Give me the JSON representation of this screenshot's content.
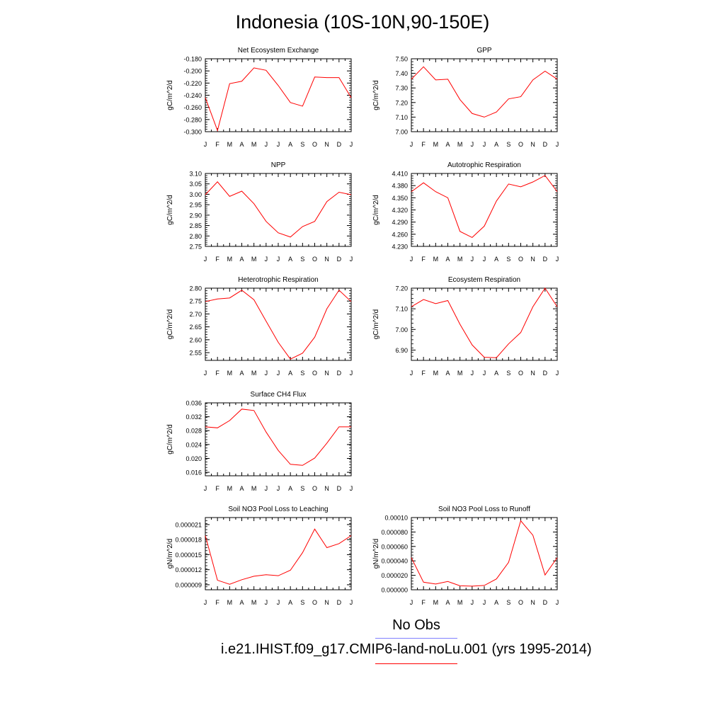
{
  "title": "Indonesia (10S-10N,90-150E)",
  "legend": {
    "obs_label": "No Obs",
    "obs_color": "#8080ff",
    "model_label": "i.e21.IHIST.f09_g17.CMIP6-land-noLu.001 (yrs 1995-2014)",
    "model_color": "#ff0000"
  },
  "chart_data": [
    {
      "type": "line",
      "title": "Net Ecosystem Exchange",
      "ylabel": "gC/m^2/d",
      "x": [
        "J",
        "F",
        "M",
        "A",
        "M",
        "J",
        "J",
        "A",
        "S",
        "O",
        "N",
        "D",
        "J"
      ],
      "ylim": [
        -0.3,
        -0.18
      ],
      "yticks": [
        -0.3,
        -0.28,
        -0.26,
        -0.24,
        -0.22,
        -0.2,
        -0.18
      ],
      "ytick_labels": [
        "-0.300",
        "-0.280",
        "-0.260",
        "-0.240",
        "-0.220",
        "-0.200",
        "-0.180"
      ],
      "series": [
        {
          "values": [
            -0.244,
            -0.298,
            -0.221,
            -0.217,
            -0.195,
            -0.199,
            -0.224,
            -0.252,
            -0.258,
            -0.21,
            -0.211,
            -0.211,
            -0.244
          ]
        }
      ]
    },
    {
      "type": "line",
      "title": "GPP",
      "ylabel": "gC/m^2/d",
      "x": [
        "J",
        "F",
        "M",
        "A",
        "M",
        "J",
        "J",
        "A",
        "S",
        "O",
        "N",
        "D",
        "J"
      ],
      "ylim": [
        7.0,
        7.5
      ],
      "yticks": [
        7.0,
        7.1,
        7.2,
        7.3,
        7.4,
        7.5
      ],
      "ytick_labels": [
        "7.00",
        "7.10",
        "7.20",
        "7.30",
        "7.40",
        "7.50"
      ],
      "series": [
        {
          "values": [
            7.36,
            7.445,
            7.355,
            7.36,
            7.22,
            7.125,
            7.1,
            7.135,
            7.225,
            7.24,
            7.355,
            7.415,
            7.36
          ]
        }
      ]
    },
    {
      "type": "line",
      "title": "NPP",
      "ylabel": "gC/m^2/d",
      "x": [
        "J",
        "F",
        "M",
        "A",
        "M",
        "J",
        "J",
        "A",
        "S",
        "O",
        "N",
        "D",
        "J"
      ],
      "ylim": [
        2.75,
        3.1
      ],
      "yticks": [
        2.75,
        2.8,
        2.85,
        2.9,
        2.95,
        3.0,
        3.05,
        3.1
      ],
      "ytick_labels": [
        "2.75",
        "2.80",
        "2.85",
        "2.90",
        "2.95",
        "3.00",
        "3.05",
        "3.10"
      ],
      "series": [
        {
          "values": [
            2.998,
            3.06,
            2.99,
            3.015,
            2.955,
            2.87,
            2.815,
            2.795,
            2.845,
            2.87,
            2.965,
            3.01,
            2.998
          ]
        }
      ]
    },
    {
      "type": "line",
      "title": "Autotrophic Respiration",
      "ylabel": "gC/m^2/d",
      "x": [
        "J",
        "F",
        "M",
        "A",
        "M",
        "J",
        "J",
        "A",
        "S",
        "O",
        "N",
        "D",
        "J"
      ],
      "ylim": [
        4.23,
        4.41
      ],
      "yticks": [
        4.23,
        4.26,
        4.29,
        4.32,
        4.35,
        4.38,
        4.41
      ],
      "ytick_labels": [
        "4.230",
        "4.260",
        "4.290",
        "4.320",
        "4.350",
        "4.380",
        "4.410"
      ],
      "series": [
        {
          "values": [
            4.365,
            4.387,
            4.365,
            4.35,
            4.267,
            4.252,
            4.28,
            4.342,
            4.384,
            4.377,
            4.389,
            4.405,
            4.365
          ]
        }
      ]
    },
    {
      "type": "line",
      "title": "Heterotrophic Respiration",
      "ylabel": "gC/m^2/d",
      "x": [
        "J",
        "F",
        "M",
        "A",
        "M",
        "J",
        "J",
        "A",
        "S",
        "O",
        "N",
        "D",
        "J"
      ],
      "ylim": [
        2.52,
        2.8
      ],
      "yticks": [
        2.55,
        2.6,
        2.65,
        2.7,
        2.75,
        2.8
      ],
      "ytick_labels": [
        "2.55",
        "2.60",
        "2.65",
        "2.70",
        "2.75",
        "2.80"
      ],
      "series": [
        {
          "values": [
            2.748,
            2.758,
            2.762,
            2.792,
            2.755,
            2.672,
            2.59,
            2.525,
            2.548,
            2.61,
            2.72,
            2.792,
            2.748
          ]
        }
      ]
    },
    {
      "type": "line",
      "title": "Ecosystem Respiration",
      "ylabel": "gC/m^2/d",
      "x": [
        "J",
        "F",
        "M",
        "A",
        "M",
        "J",
        "J",
        "A",
        "S",
        "O",
        "N",
        "D",
        "J"
      ],
      "ylim": [
        6.85,
        7.2
      ],
      "yticks": [
        6.9,
        7.0,
        7.1,
        7.2
      ],
      "ytick_labels": [
        "6.90",
        "7.00",
        "7.10",
        "7.20"
      ],
      "series": [
        {
          "values": [
            7.11,
            7.145,
            7.125,
            7.14,
            7.025,
            6.925,
            6.865,
            6.863,
            6.93,
            6.985,
            7.11,
            7.2,
            7.11
          ]
        }
      ]
    },
    {
      "type": "line",
      "title": "Surface CH4 Flux",
      "ylabel": "gC/m^2/d",
      "x": [
        "J",
        "F",
        "M",
        "A",
        "M",
        "J",
        "J",
        "A",
        "S",
        "O",
        "N",
        "D",
        "J"
      ],
      "ylim": [
        0.015,
        0.036
      ],
      "yticks": [
        0.016,
        0.02,
        0.024,
        0.028,
        0.032,
        0.036
      ],
      "ytick_labels": [
        "0.016",
        "0.020",
        "0.024",
        "0.028",
        "0.032",
        "0.036"
      ],
      "series": [
        {
          "values": [
            0.0291,
            0.0288,
            0.0309,
            0.0342,
            0.0338,
            0.0276,
            0.0223,
            0.0183,
            0.018,
            0.0201,
            0.0244,
            0.0291,
            0.0291
          ]
        }
      ]
    },
    {
      "type": "line",
      "title": "Soil NO3 Pool Loss to Leaching",
      "ylabel": "gN/m^2/d",
      "x": [
        "J",
        "F",
        "M",
        "A",
        "M",
        "J",
        "J",
        "A",
        "S",
        "O",
        "N",
        "D",
        "J"
      ],
      "ylim": [
        8e-06,
        2.24e-05
      ],
      "yticks": [
        9e-06,
        1.2e-05,
        1.5e-05,
        1.8e-05,
        2.1e-05
      ],
      "ytick_labels": [
        "0.000009",
        "0.000012",
        "0.000015",
        "0.000018",
        "0.000021"
      ],
      "series": [
        {
          "values": [
            1.88e-05,
            9.9e-06,
            9.1e-06,
            1e-05,
            1.07e-05,
            1.1e-05,
            1.08e-05,
            1.19e-05,
            1.54e-05,
            2.01e-05,
            1.64e-05,
            1.72e-05,
            1.88e-05
          ]
        }
      ]
    },
    {
      "type": "line",
      "title": "Soil NO3 Pool Loss to Runoff",
      "ylabel": "gN/m^2/d",
      "x": [
        "J",
        "F",
        "M",
        "A",
        "M",
        "J",
        "J",
        "A",
        "S",
        "O",
        "N",
        "D",
        "J"
      ],
      "ylim": [
        0.0,
        0.0001
      ],
      "yticks": [
        0.0,
        2e-05,
        4e-05,
        6e-05,
        8e-05,
        0.0001
      ],
      "ytick_labels": [
        "0.000000",
        "0.000020",
        "0.000040",
        "0.000060",
        "0.000080",
        "0.00010"
      ],
      "series": [
        {
          "values": [
            4.45e-05,
            1.05e-05,
            8e-06,
            1.15e-05,
            5.5e-06,
            5e-06,
            6e-06,
            1.5e-05,
            3.8e-05,
            9.55e-05,
            7.55e-05,
            2.05e-05,
            4.45e-05
          ]
        }
      ]
    }
  ]
}
